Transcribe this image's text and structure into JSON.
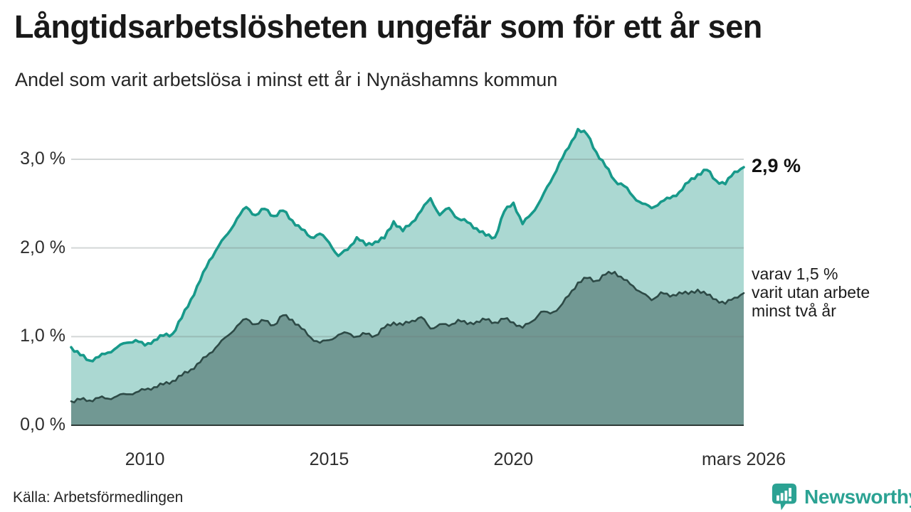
{
  "chart_data": {
    "type": "area",
    "title": "Långtidsarbetslösheten ungefär som för ett år sen",
    "subtitle": "Andel som varit arbetslösa i minst ett år i Nynäshamns kommun",
    "x_domain": [
      2008,
      2026.25
    ],
    "x_step": 0.25,
    "x_ticks": [
      {
        "year": 2010,
        "label": "2010"
      },
      {
        "year": 2015,
        "label": "2015"
      },
      {
        "year": 2020,
        "label": "2020"
      },
      {
        "year": 2026.25,
        "label": "mars 2026"
      }
    ],
    "y_ticks": [
      {
        "value": 3,
        "label": "3,0 %"
      },
      {
        "value": 2,
        "label": "2,0 %"
      },
      {
        "value": 1,
        "label": "1,0 %"
      },
      {
        "value": 0,
        "label": "0,0 %"
      }
    ],
    "ylim": [
      0,
      3.4
    ],
    "grid": "horizontal",
    "legend_position": "right-annotations",
    "series": [
      {
        "name": "Andel arbetslösa minst ett år",
        "line_color": "#17998a",
        "fill_color": "#abd8d2",
        "end_value": 2.9,
        "end_value_label": "2,9 %",
        "values": [
          0.88,
          0.79,
          0.73,
          0.77,
          0.82,
          0.88,
          0.93,
          0.96,
          0.9,
          0.96,
          1.01,
          1.03,
          1.21,
          1.42,
          1.63,
          1.86,
          2.02,
          2.16,
          2.33,
          2.46,
          2.37,
          2.44,
          2.36,
          2.42,
          2.31,
          2.21,
          2.12,
          2.16,
          2.06,
          1.91,
          1.98,
          2.12,
          2.03,
          2.07,
          2.11,
          2.3,
          2.19,
          2.29,
          2.42,
          2.56,
          2.37,
          2.45,
          2.33,
          2.29,
          2.22,
          2.14,
          2.12,
          2.41,
          2.51,
          2.27,
          2.39,
          2.55,
          2.74,
          2.96,
          3.13,
          3.34,
          3.28,
          3.08,
          2.92,
          2.76,
          2.7,
          2.58,
          2.5,
          2.45,
          2.52,
          2.56,
          2.63,
          2.74,
          2.83,
          2.88,
          2.76,
          2.72,
          2.86,
          2.91
        ]
      },
      {
        "name": "Varav utan arbete minst två år",
        "line_color": "#2d4a46",
        "fill_color": "#719893",
        "end_value": 1.5,
        "end_value_label": "varav 1,5 % varit utan arbete minst två år",
        "values": [
          0.27,
          0.29,
          0.28,
          0.31,
          0.3,
          0.33,
          0.35,
          0.37,
          0.4,
          0.43,
          0.46,
          0.5,
          0.56,
          0.63,
          0.71,
          0.81,
          0.91,
          1.01,
          1.12,
          1.2,
          1.14,
          1.18,
          1.13,
          1.24,
          1.19,
          1.09,
          0.99,
          0.93,
          0.96,
          1.02,
          1.04,
          1.0,
          1.03,
          1.01,
          1.1,
          1.16,
          1.13,
          1.18,
          1.22,
          1.09,
          1.14,
          1.12,
          1.19,
          1.14,
          1.17,
          1.19,
          1.16,
          1.2,
          1.16,
          1.1,
          1.17,
          1.28,
          1.26,
          1.33,
          1.46,
          1.61,
          1.66,
          1.63,
          1.7,
          1.73,
          1.64,
          1.57,
          1.49,
          1.41,
          1.5,
          1.45,
          1.5,
          1.48,
          1.53,
          1.47,
          1.42,
          1.37,
          1.44,
          1.49
        ]
      }
    ],
    "annotations": {
      "series1_end": "2,9 %",
      "series2_end_lines": [
        "varav 1,5 %",
        "varit utan arbete",
        "minst två år"
      ]
    }
  },
  "footer": {
    "source": "Källa: Arbetsförmedlingen",
    "brand": "Newsworthy"
  },
  "colors": {
    "accent_teal": "#17998a",
    "dark_teal": "#2d4a46",
    "brand_teal": "#2ba293",
    "grid": "#d8dcdb",
    "baseline": "#2e3a37",
    "text_dark": "#191919"
  }
}
